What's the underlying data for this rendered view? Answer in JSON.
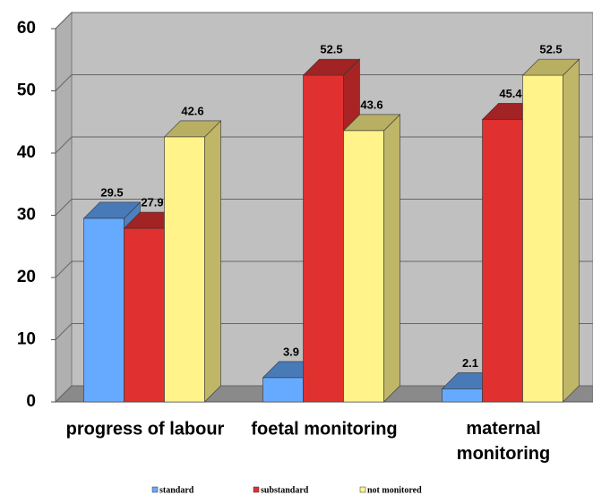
{
  "chart_data": {
    "type": "bar3d",
    "categories": [
      "progress of labour",
      "foetal monitoring",
      "maternal monitoring"
    ],
    "series": [
      {
        "name": "standard",
        "color": "#66aaff",
        "values": [
          29.5,
          3.9,
          2.1
        ]
      },
      {
        "name": "substandard",
        "color": "#e03030",
        "values": [
          27.9,
          52.5,
          45.4
        ]
      },
      {
        "name": "not monitored",
        "color": "#fff38a",
        "values": [
          42.6,
          43.6,
          52.5
        ]
      }
    ],
    "ylim": [
      0,
      60
    ],
    "yticks": [
      0,
      10,
      20,
      30,
      40,
      50,
      60
    ],
    "grid": true,
    "legend": "bottom"
  }
}
